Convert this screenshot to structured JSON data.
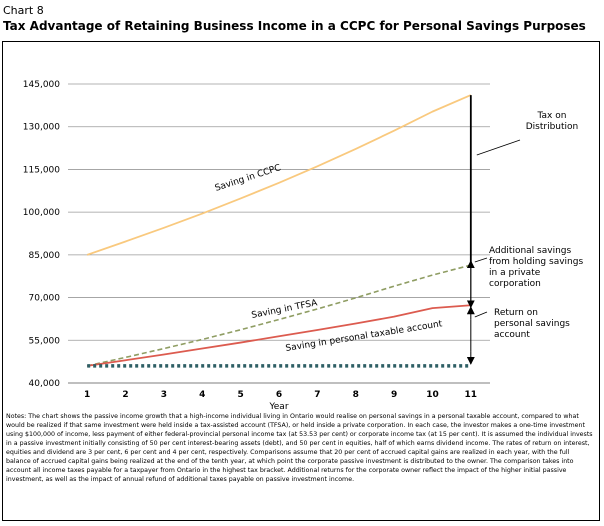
{
  "header": {
    "chart_label": "Chart 8",
    "title": "Tax Advantage of Retaining Business Income in a CCPC for Personal Savings Purposes"
  },
  "colors": {
    "ccpc": "#f9c97e",
    "tfsa": "#8f9d63",
    "taxable": "#dc5b4f",
    "base": "#2e5f65",
    "grid": "#9a9a9a"
  },
  "chart_data": {
    "type": "line",
    "title": "Tax Advantage of Retaining Business Income in a CCPC for Personal Savings Purposes",
    "xlabel": "Year",
    "ylabel": "",
    "x": [
      1,
      2,
      3,
      4,
      5,
      6,
      7,
      8,
      9,
      10,
      11
    ],
    "ylim": [
      40000,
      145000
    ],
    "yticks": [
      40000,
      55000,
      70000,
      85000,
      100000,
      115000,
      130000,
      145000
    ],
    "ytick_labels": [
      "40,000",
      "55,000",
      "70,000",
      "85,000",
      "100,000",
      "115,000",
      "130,000",
      "145,000"
    ],
    "grid": true,
    "series": [
      {
        "name": "Saving in CCPC",
        "style": "solid",
        "color": "#f9c97e",
        "values": [
          85000,
          89700,
          94500,
          99500,
          104800,
          110300,
          116100,
          122200,
          128600,
          135300,
          141100
        ]
      },
      {
        "name": "Saving in TFSA",
        "style": "dashed",
        "color": "#8f9d63",
        "values": [
          46000,
          49000,
          52100,
          55300,
          58700,
          62300,
          66000,
          69900,
          74000,
          77900,
          81400
        ]
      },
      {
        "name": "Saving in personal taxable account",
        "style": "solid",
        "color": "#dc5b4f",
        "values": [
          46000,
          48000,
          50000,
          52100,
          54200,
          56400,
          58600,
          60900,
          63300,
          66300,
          67300
        ]
      },
      {
        "name": "",
        "style": "dotted",
        "color": "#2e5f65",
        "values": [
          46000,
          46000,
          46000,
          46000,
          46000,
          46000,
          46000,
          46000,
          46000,
          46000,
          46000
        ]
      }
    ],
    "annotations": [
      {
        "label": "Tax on Distribution",
        "lines": [
          "Tax on",
          "Distribution"
        ]
      },
      {
        "label": "Additional savings from holding savings in a private corporation",
        "lines": [
          "Additional savings",
          "from holding savings",
          "in a private",
          "corporation"
        ]
      },
      {
        "label": "Return on personal savings account",
        "lines": [
          "Return on",
          "personal savings",
          "account"
        ]
      }
    ],
    "brackets": [
      {
        "name": "tax-on-distribution",
        "x": 11,
        "from": 81400,
        "to": 141100
      },
      {
        "name": "additional-savings",
        "x": 11,
        "from": 67300,
        "to": 81400
      },
      {
        "name": "return-on-savings",
        "x": 11,
        "from": 46000,
        "to": 67300
      }
    ]
  },
  "notes": "Notes: The chart shows the passive income growth that a high-income individual living in Ontario would realise on personal savings in a personal taxable account, compared to what would be realized if that same investment were held inside a tax-assisted account (TFSA), or held inside a private corporation. In each case, the investor makes a one-time investment using $100,000 of income, less payment of either federal-provincial personal income tax (at 53.53 per cent) or corporate income tax (at 15 per cent). It is assumed the individual invests in a passive investment initially consisting of 50 per cent interest-bearing assets (debt), and 50 per cent in equities, half of which earns dividend income. The rates of return on interest, equities and dividend are 3 per cent, 6 per cent and 4 per cent, respectively. Comparisons assume that 20 per cent of accrued capital gains are realized in each year, with the full balance of accrued capital gains being realized at the end of the tenth year, at which point the corporate passive investment is distributed to the owner. The comparison takes into account all income taxes payable for a taxpayer from Ontario in the highest tax bracket. Additional returns for the corporate owner reflect the impact of the higher initial passive investment, as well as the impact of annual refund of additional taxes payable on passive investment income."
}
